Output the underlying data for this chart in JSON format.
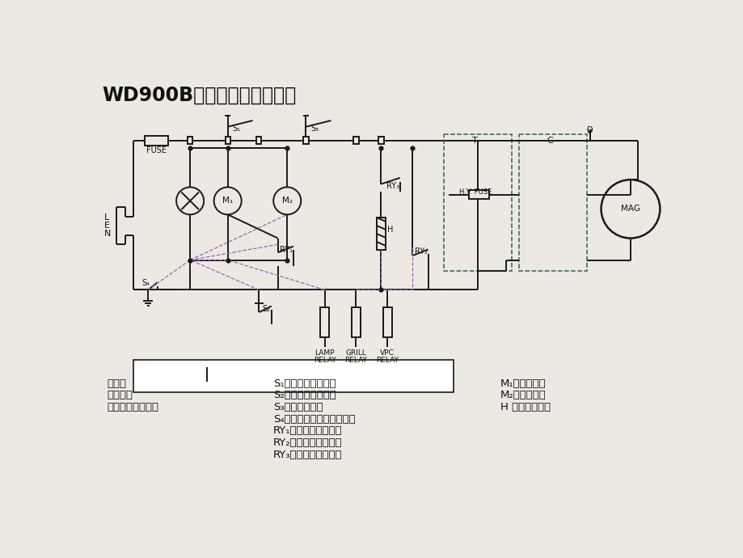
{
  "title": "WD900B型微波炉电原理图：",
  "bg_color": "#ece9e2",
  "line_color": "#1a1a1a",
  "dashed_purple": "#9966bb",
  "green_dashed": "#336633",
  "legend_left": [
    "条件：",
    "炉门：关",
    "薄膜开关：按取消"
  ],
  "legend_mid": [
    "S₁：门第一联锁开关",
    "S₂：门第二联锁开关",
    "S₃：门监控开关",
    "S₄：磁控管自复位热断路器",
    "RY₁：炉灯控制继电器",
    "RY₂：微波控制继电器",
    "RY₃：烧烤控制继电器"
  ],
  "legend_right": [
    "M₁：风扇电机",
    "M₂：转盘电机",
    "H ：石英发热管"
  ]
}
